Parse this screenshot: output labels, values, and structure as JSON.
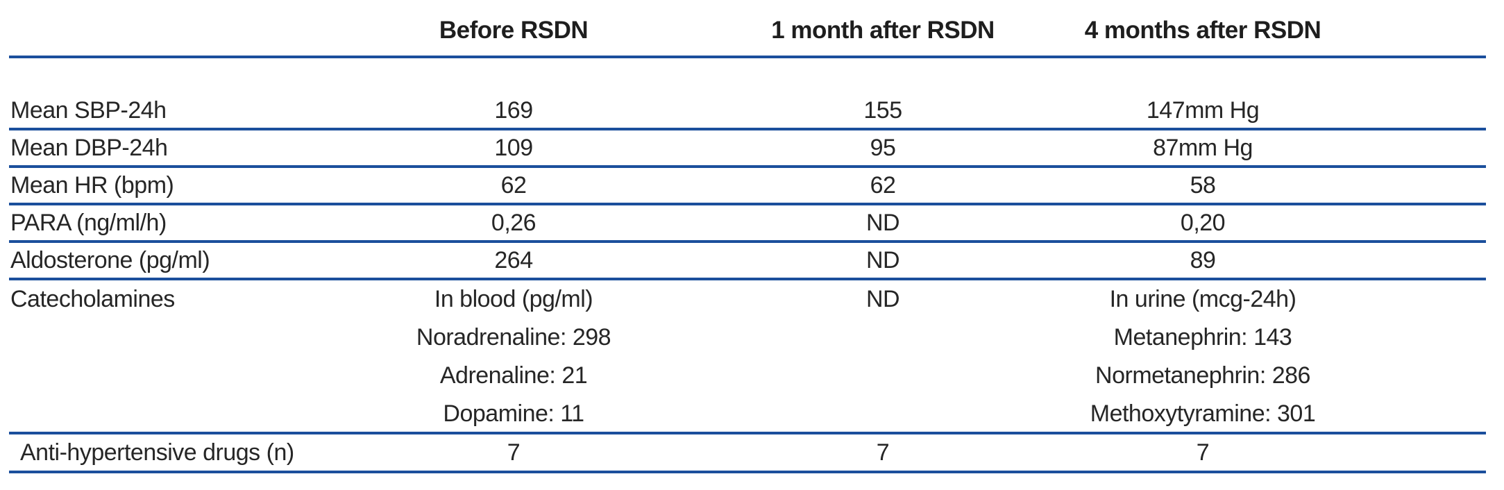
{
  "colors": {
    "rule_blue": "#1b4f9c",
    "text": "#262626",
    "header_text": "#1e1e1e"
  },
  "chart_data": {
    "type": "table",
    "title": "",
    "columns": [
      "",
      "Before RSDN",
      "1 month after RSDN",
      "4 months after RSDN"
    ],
    "rows": [
      [
        "Mean SBP-24h",
        "169",
        "155",
        "147mm Hg"
      ],
      [
        "Mean DBP-24h",
        "109",
        "95",
        "87mm Hg"
      ],
      [
        "Mean HR (bpm)",
        "62",
        "62",
        "58"
      ],
      [
        "PARA (ng/ml/h)",
        "0,26",
        "ND",
        "0,20"
      ],
      [
        "Aldosterone (pg/ml)",
        "264",
        "ND",
        "89"
      ],
      [
        "Catecholamines",
        "In blood (pg/ml); Noradrenaline: 298; Adrenaline: 21; Dopamine: 11",
        "ND",
        "In urine (mcg-24h); Metanephrin: 143; Normetanephrin: 286; Methoxytyramine: 301"
      ],
      [
        "Anti-hypertensive drugs (n)",
        "7",
        "7",
        "7"
      ]
    ]
  },
  "table": {
    "header": {
      "col_label": "",
      "col_before": "Before RSDN",
      "col_month1": "1 month after RSDN",
      "col_month4": "4 months after RSDN"
    },
    "rows": [
      {
        "label": "Mean SBP-24h",
        "before": "169",
        "month1": "155",
        "month4": "147mm Hg"
      },
      {
        "label": "Mean DBP-24h",
        "before": "109",
        "month1": "95",
        "month4": "87mm Hg"
      },
      {
        "label": "Mean HR (bpm)",
        "before": "62",
        "month1": "62",
        "month4": "58"
      },
      {
        "label": "PARA (ng/ml/h)",
        "before": "0,26",
        "month1": "ND",
        "month4": "0,20"
      },
      {
        "label": "Aldosterone (pg/ml)",
        "before": "264",
        "month1": "ND",
        "month4": "89"
      },
      {
        "label": "Catecholamines",
        "before": [
          "In blood (pg/ml)",
          "Noradrenaline: 298",
          "Adrenaline: 21",
          "Dopamine: 11"
        ],
        "month1": "ND",
        "month4": [
          "In urine (mcg-24h)",
          "Metanephrin: 143",
          "Normetanephrin: 286",
          "Methoxytyramine: 301"
        ]
      },
      {
        "label": "Anti-hypertensive drugs (n)",
        "before": "7",
        "month1": "7",
        "month4": "7"
      }
    ]
  }
}
